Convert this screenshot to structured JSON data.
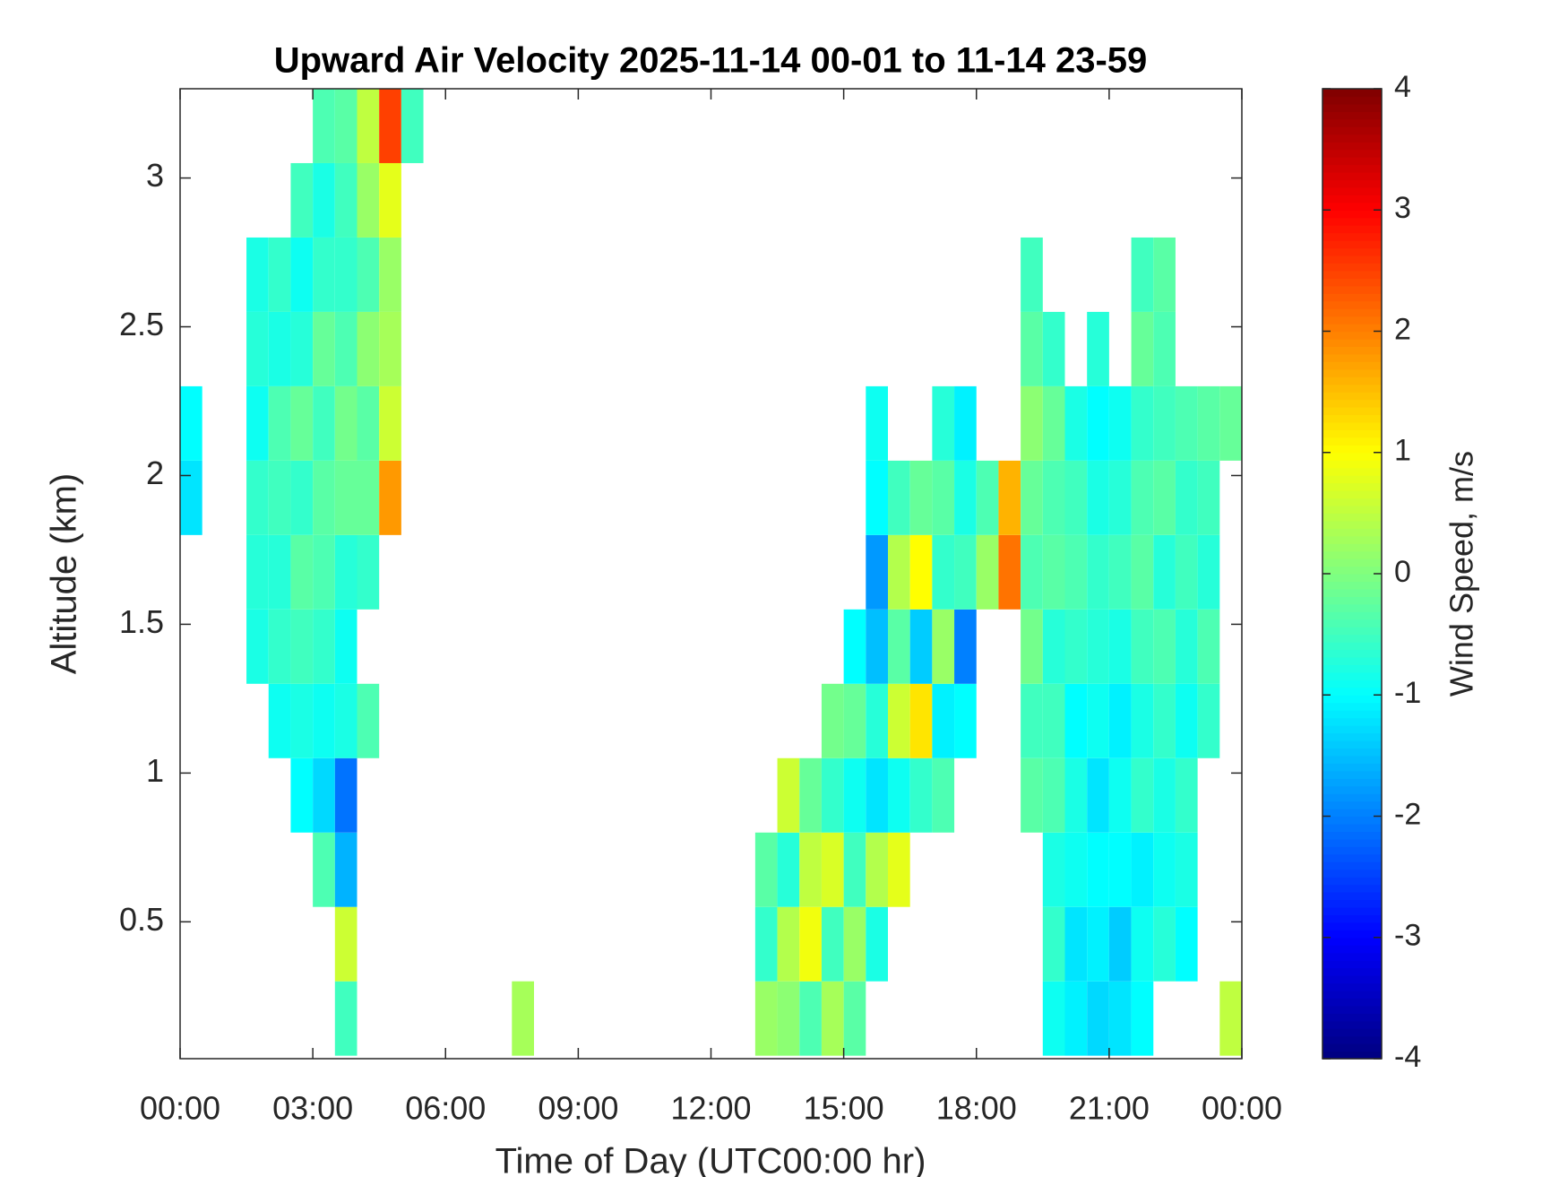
{
  "chart_data": {
    "type": "heatmap",
    "title": "Upward Air Velocity 2025-11-14 00-01 to 11-14 23-59",
    "xlabel": "Time of Day (UTC00:00 hr)",
    "ylabel": "Altitude (km)",
    "colorbar_label": "Wind Speed, m/s",
    "colormap": "jet",
    "xlim": [
      0,
      24
    ],
    "xticks": [
      {
        "value": 0,
        "label": "00:00"
      },
      {
        "value": 3,
        "label": "03:00"
      },
      {
        "value": 6,
        "label": "06:00"
      },
      {
        "value": 9,
        "label": "09:00"
      },
      {
        "value": 12,
        "label": "12:00"
      },
      {
        "value": 15,
        "label": "15:00"
      },
      {
        "value": 18,
        "label": "18:00"
      },
      {
        "value": 21,
        "label": "21:00"
      },
      {
        "value": 24,
        "label": "00:00"
      }
    ],
    "ylim": [
      0.04,
      3.3
    ],
    "yticks": [
      0.5,
      1,
      1.5,
      2,
      2.5,
      3
    ],
    "clim": [
      -4,
      4
    ],
    "cticks": [
      -4,
      -3,
      -2,
      -1,
      0,
      1,
      2,
      3,
      4
    ],
    "x": [
      0.25,
      0.25,
      1.75,
      1.75,
      1.75,
      1.75,
      1.75,
      1.75,
      2.25,
      2.25,
      2.25,
      2.25,
      2.25,
      2.25,
      2.25,
      2.75,
      2.75,
      2.75,
      2.75,
      2.75,
      2.75,
      2.75,
      2.75,
      2.75,
      3.25,
      3.25,
      3.25,
      3.25,
      3.25,
      3.25,
      3.25,
      3.25,
      3.25,
      3.25,
      3.25,
      3.75,
      3.75,
      3.75,
      3.75,
      3.75,
      3.75,
      3.75,
      3.75,
      3.75,
      3.75,
      3.75,
      3.75,
      3.75,
      4.25,
      4.25,
      4.25,
      4.25,
      4.25,
      4.25,
      4.25,
      4.25,
      4.75,
      4.75,
      4.75,
      4.75,
      4.75,
      4.75,
      5.25,
      7.75,
      13.25,
      13.25,
      13.25,
      13.75,
      13.75,
      13.75,
      13.75,
      14.25,
      14.25,
      14.25,
      14.25,
      14.75,
      14.75,
      14.75,
      14.75,
      14.75,
      15.25,
      15.25,
      15.25,
      15.25,
      15.25,
      15.25,
      15.75,
      15.75,
      15.75,
      15.75,
      15.75,
      15.75,
      15.75,
      15.75,
      16.25,
      16.25,
      16.25,
      16.25,
      16.25,
      16.25,
      16.75,
      16.75,
      16.75,
      16.75,
      16.75,
      17.25,
      17.25,
      17.25,
      17.25,
      17.25,
      17.25,
      17.75,
      17.75,
      17.75,
      17.75,
      17.75,
      18.25,
      18.25,
      18.75,
      18.75,
      19.25,
      19.25,
      19.25,
      19.25,
      19.25,
      19.25,
      19.25,
      19.25,
      19.75,
      19.75,
      19.75,
      19.75,
      19.75,
      19.75,
      19.75,
      19.75,
      19.75,
      19.75,
      20.25,
      20.25,
      20.25,
      20.25,
      20.25,
      20.25,
      20.25,
      20.25,
      20.25,
      20.75,
      20.75,
      20.75,
      20.75,
      20.75,
      20.75,
      20.75,
      20.75,
      20.75,
      20.75,
      21.25,
      21.25,
      21.25,
      21.25,
      21.25,
      21.25,
      21.25,
      21.25,
      21.25,
      21.75,
      21.75,
      21.75,
      21.75,
      21.75,
      21.75,
      21.75,
      21.75,
      21.75,
      21.75,
      21.75,
      22.25,
      22.25,
      22.25,
      22.25,
      22.25,
      22.25,
      22.25,
      22.25,
      22.25,
      22.25,
      22.75,
      22.75,
      22.75,
      22.75,
      22.75,
      22.75,
      22.75,
      22.75,
      23.25,
      23.25,
      23.25,
      23.25,
      23.25,
      23.75,
      23.75
    ],
    "y": [
      1.925,
      2.175,
      1.425,
      1.675,
      1.925,
      2.175,
      2.425,
      2.675,
      1.175,
      1.425,
      1.675,
      1.925,
      2.175,
      2.425,
      2.675,
      0.925,
      1.175,
      1.425,
      1.675,
      1.925,
      2.175,
      2.425,
      2.675,
      2.925,
      0.675,
      0.925,
      1.175,
      1.425,
      1.675,
      1.925,
      2.175,
      2.425,
      2.675,
      2.925,
      3.175,
      0.175,
      0.425,
      0.675,
      0.925,
      1.175,
      1.425,
      1.675,
      1.925,
      2.175,
      2.425,
      2.675,
      2.925,
      3.175,
      1.175,
      1.675,
      1.925,
      2.175,
      2.425,
      2.675,
      2.925,
      3.175,
      1.925,
      2.175,
      2.425,
      2.675,
      2.925,
      3.175,
      3.175,
      0.175,
      0.175,
      0.425,
      0.675,
      0.175,
      0.425,
      0.675,
      0.925,
      0.175,
      0.425,
      0.675,
      0.925,
      0.175,
      0.425,
      0.675,
      0.925,
      1.175,
      0.175,
      0.425,
      0.675,
      0.925,
      1.175,
      1.425,
      0.425,
      0.675,
      0.925,
      1.175,
      1.425,
      1.675,
      1.925,
      2.175,
      0.675,
      0.925,
      1.175,
      1.425,
      1.675,
      1.925,
      0.925,
      1.175,
      1.425,
      1.675,
      1.925,
      0.925,
      1.175,
      1.425,
      1.675,
      1.925,
      2.175,
      1.175,
      1.425,
      1.675,
      1.925,
      2.175,
      1.675,
      1.925,
      1.675,
      1.925,
      0.925,
      1.175,
      1.425,
      1.675,
      1.925,
      2.175,
      2.425,
      2.675,
      0.175,
      0.425,
      0.675,
      0.925,
      1.175,
      1.425,
      1.675,
      1.925,
      2.175,
      2.425,
      0.175,
      0.425,
      0.675,
      0.925,
      1.175,
      1.425,
      1.675,
      1.925,
      2.175,
      0.175,
      0.425,
      0.675,
      0.925,
      1.175,
      1.425,
      1.675,
      1.925,
      2.175,
      2.425,
      0.175,
      0.425,
      0.675,
      0.925,
      1.175,
      1.425,
      1.675,
      1.925,
      2.175,
      0.175,
      0.425,
      0.675,
      0.925,
      1.175,
      1.425,
      1.675,
      1.925,
      2.175,
      2.425,
      2.675,
      0.425,
      0.675,
      0.925,
      1.175,
      1.425,
      1.675,
      1.925,
      2.175,
      2.425,
      2.675,
      0.425,
      0.675,
      0.925,
      1.175,
      1.425,
      1.675,
      1.925,
      2.175,
      1.175,
      1.425,
      1.675,
      1.925,
      2.175,
      0.175,
      2.175
    ],
    "values": [
      -1.2,
      -1.0,
      -0.8,
      -0.7,
      -0.6,
      -0.9,
      -0.7,
      -0.8,
      -0.9,
      -0.6,
      -0.7,
      -0.5,
      -0.4,
      -0.8,
      -0.6,
      -1.0,
      -0.8,
      -0.5,
      -0.3,
      -0.6,
      -0.2,
      -0.7,
      -0.9,
      -0.5,
      -0.4,
      -1.3,
      -0.9,
      -0.6,
      -0.4,
      -0.3,
      -0.5,
      -0.2,
      -0.6,
      -0.8,
      -0.4,
      -0.5,
      0.6,
      -1.6,
      -2.1,
      -0.8,
      -0.9,
      -0.7,
      -0.2,
      -0.1,
      -0.4,
      -0.6,
      -0.5,
      -0.3,
      -0.4,
      -0.6,
      -0.2,
      -0.3,
      0.1,
      -0.4,
      0.2,
      0.5,
      1.8,
      0.6,
      0.3,
      0.2,
      0.8,
      2.5,
      -0.5,
      0.3,
      0.2,
      -0.6,
      -0.3,
      0.1,
      0.4,
      -0.7,
      0.6,
      -0.4,
      0.9,
      0.5,
      -0.2,
      0.3,
      -0.5,
      0.7,
      -0.6,
      -0.1,
      -0.3,
      0.2,
      -0.5,
      -0.9,
      -0.2,
      -1.0,
      -0.8,
      0.4,
      -1.2,
      -0.7,
      -1.5,
      -1.8,
      -1.0,
      -0.9,
      0.8,
      -0.9,
      0.6,
      -0.3,
      0.4,
      -0.5,
      -0.6,
      1.2,
      -1.4,
      1.0,
      -0.2,
      -0.4,
      -1.1,
      0.2,
      -0.6,
      -0.3,
      -0.7,
      -1.0,
      -2.0,
      -0.5,
      -0.8,
      -1.1,
      0.2,
      -0.4,
      2.1,
      1.6,
      -0.3,
      -0.5,
      -0.1,
      -0.4,
      -0.2,
      0.1,
      -0.3,
      -0.5,
      -0.9,
      -0.6,
      -0.8,
      -0.4,
      -0.5,
      -0.7,
      -0.3,
      -0.4,
      -0.2,
      -0.6,
      -1.1,
      -1.2,
      -0.9,
      -0.8,
      -1.0,
      -0.6,
      -0.4,
      -0.5,
      -0.8,
      -1.3,
      -1.1,
      -1.0,
      -1.2,
      -0.9,
      -0.7,
      -0.6,
      -0.8,
      -1.0,
      -0.7,
      -1.2,
      -1.4,
      -1.0,
      -0.9,
      -1.1,
      -0.8,
      -0.5,
      -0.7,
      -0.9,
      -1.0,
      -0.9,
      -1.1,
      -0.6,
      -0.8,
      -0.5,
      -0.3,
      -0.4,
      -0.6,
      -0.2,
      -0.5,
      -0.7,
      -0.9,
      -0.8,
      -0.6,
      -0.4,
      -0.7,
      -0.3,
      -0.5,
      -0.4,
      -0.3,
      -1.0,
      -0.8,
      -0.6,
      -0.9,
      -0.7,
      -0.5,
      -0.6,
      -0.4,
      -0.6,
      -0.4,
      -0.7,
      -0.5,
      -0.3,
      0.5,
      -0.2
    ]
  }
}
